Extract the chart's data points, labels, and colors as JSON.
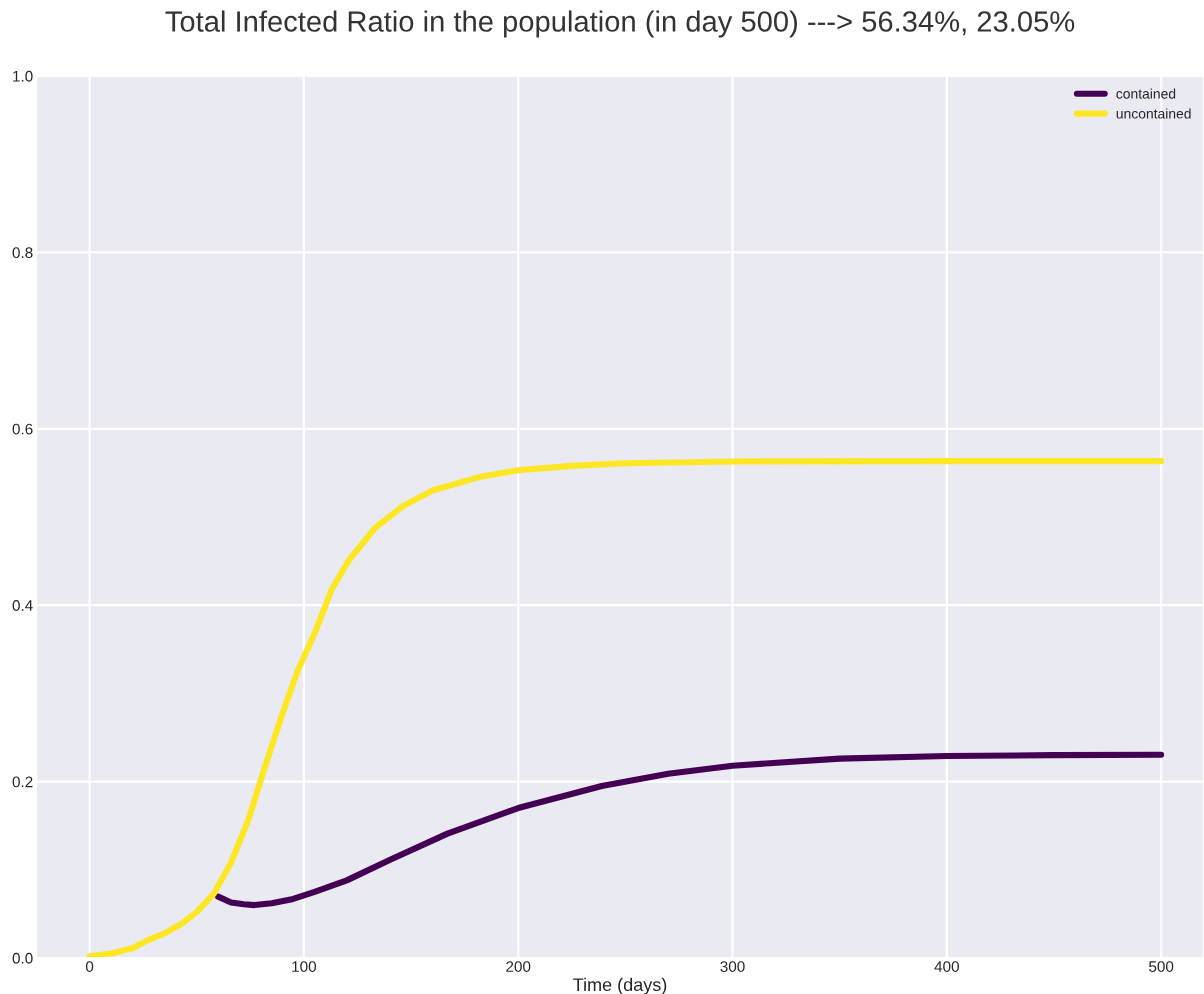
{
  "chart_data": {
    "type": "line",
    "title": "Total Infected Ratio in the population (in day 500) ---> 56.34%, 23.05%",
    "xlabel": "Time (days)",
    "xlim": [
      -25,
      520
    ],
    "ylim": [
      0,
      1
    ],
    "xticks": [
      0,
      100,
      200,
      300,
      400,
      500
    ],
    "yticks": [
      {
        "value": 0,
        "label": "0.0"
      },
      {
        "value": 0.2,
        "label": "0.2"
      },
      {
        "value": 0.4,
        "label": "0.4"
      },
      {
        "value": 0.6,
        "label": "0.6"
      },
      {
        "value": 0.8,
        "label": "0.8"
      },
      {
        "value": 1,
        "label": "1.0"
      }
    ],
    "grid": true,
    "legend": "top right",
    "series": [
      {
        "name": "contained",
        "color": "#440154",
        "x": [
          60,
          66,
          72,
          77,
          85,
          95,
          105,
          120,
          140,
          167,
          200,
          239,
          270,
          300,
          350,
          400,
          450,
          500
        ],
        "values": [
          0.0696,
          0.063,
          0.061,
          0.06,
          0.062,
          0.067,
          0.075,
          0.088,
          0.111,
          0.141,
          0.17,
          0.195,
          0.209,
          0.218,
          0.226,
          0.229,
          0.23,
          0.2305
        ]
      },
      {
        "name": "uncontained",
        "color": "#fde725",
        "x": [
          0,
          10,
          20,
          27,
          35,
          43,
          50,
          58,
          66,
          74,
          82,
          90,
          97,
          105,
          113,
          121,
          133,
          146,
          160,
          183,
          200,
          225,
          250,
          300,
          400,
          500
        ],
        "values": [
          0.002,
          0.005,
          0.011,
          0.02,
          0.028,
          0.039,
          0.052,
          0.073,
          0.108,
          0.156,
          0.218,
          0.277,
          0.325,
          0.368,
          0.418,
          0.451,
          0.487,
          0.512,
          0.53,
          0.546,
          0.553,
          0.558,
          0.561,
          0.563,
          0.5634,
          0.5634
        ]
      }
    ]
  }
}
